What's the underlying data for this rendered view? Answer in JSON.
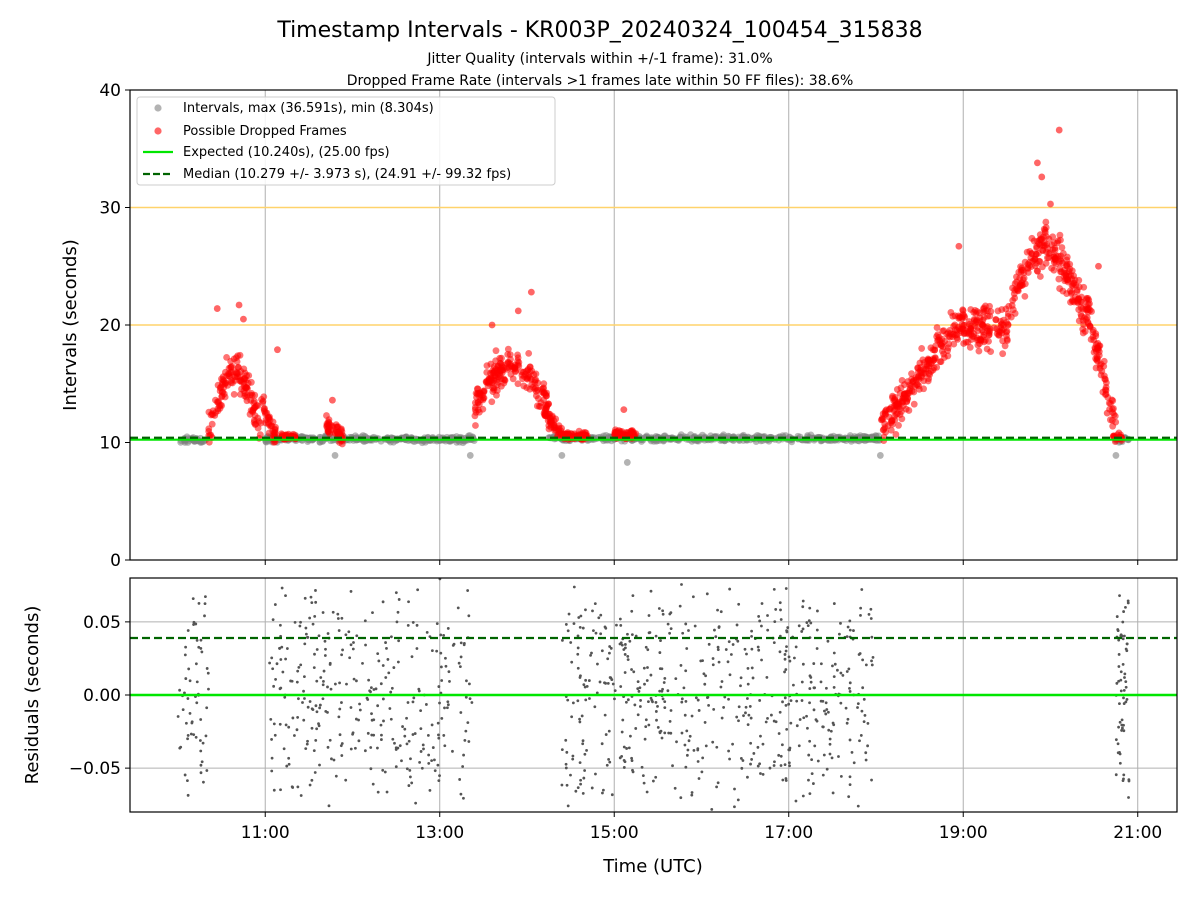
{
  "title": "Timestamp Intervals - KR003P_20240324_100454_315838",
  "subtitle_1": "Jitter Quality (intervals within +/-1 frame): 31.0%",
  "subtitle_2": "Dropped Frame Rate (intervals >1 frames late within 50 FF files): 38.6%",
  "colors": {
    "intervals": "#808080",
    "dropped": "#ff0000",
    "expected": "#00e600",
    "median": "#006400",
    "threshold": "#ffd36b",
    "grid": "#b0b0b0"
  },
  "chart_data": [
    {
      "type": "scatter",
      "ylabel": "Intervals (seconds)",
      "ylim": [
        0,
        40
      ],
      "yticks": [
        "0",
        "10",
        "20",
        "30",
        "40"
      ],
      "xlim_hours": [
        9.45,
        21.45
      ],
      "grid": "vertical",
      "legend_position": "top-left",
      "legend": [
        "Intervals, max (36.591s), min (8.304s)",
        "Possible Dropped Frames",
        "Expected (10.240s), (25.00 fps)",
        "Median (10.279 +/- 3.973 s), (24.91 +/- 99.32 fps)"
      ],
      "expected_line": 10.24,
      "median_line": 10.279,
      "threshold_lines": [
        20,
        30
      ],
      "series": [
        {
          "name": "Intervals, max (36.591s), min (8.304s)",
          "segments": [
            {
              "x_start": 10.0,
              "x_end": 10.32,
              "y_center": 10.2,
              "spread": 0.5
            },
            {
              "x_start": 11.0,
              "x_end": 13.4,
              "y_center": 10.3,
              "spread": 0.5
            },
            {
              "x_start": 14.25,
              "x_end": 18.05,
              "y_center": 10.35,
              "spread": 0.5
            },
            {
              "x_start": 20.75,
              "x_end": 20.9,
              "y_center": 10.25,
              "spread": 0.5
            }
          ],
          "markers": [
            {
              "x": 11.8,
              "y": 8.9
            },
            {
              "x": 13.35,
              "y": 8.9
            },
            {
              "x": 14.4,
              "y": 8.9
            },
            {
              "x": 15.15,
              "y": 8.304
            },
            {
              "x": 18.05,
              "y": 8.9
            },
            {
              "x": 20.75,
              "y": 8.9
            }
          ]
        },
        {
          "name": "Possible Dropped Frames",
          "segments": [
            {
              "x_start": 10.35,
              "x_end": 10.95,
              "profile": "hump",
              "base": 11.0,
              "peak": 16.0,
              "spread": 1.6
            },
            {
              "x_start": 10.95,
              "x_end": 11.12,
              "profile": "ramp",
              "from": 13.5,
              "to": 10.5,
              "spread": 1.0
            },
            {
              "x_start": 11.18,
              "x_end": 11.35,
              "profile": "flat",
              "base": 10.5,
              "spread": 0.3
            },
            {
              "x_start": 11.7,
              "x_end": 11.9,
              "profile": "ramp",
              "from": 11.5,
              "to": 10.5,
              "spread": 0.7
            },
            {
              "x_start": 13.4,
              "x_end": 14.25,
              "profile": "hump",
              "base": 13.0,
              "peak": 16.5,
              "spread": 1.4
            },
            {
              "x_start": 14.2,
              "x_end": 14.4,
              "profile": "ramp",
              "from": 12.5,
              "to": 10.6,
              "spread": 0.7
            },
            {
              "x_start": 14.4,
              "x_end": 14.7,
              "profile": "flat",
              "base": 10.6,
              "spread": 0.3
            },
            {
              "x_start": 15.0,
              "x_end": 15.25,
              "profile": "flat",
              "base": 10.7,
              "spread": 0.4
            },
            {
              "x_start": 18.05,
              "x_end": 19.0,
              "profile": "ramp",
              "from": 11.0,
              "to": 20.5,
              "spread": 1.6
            },
            {
              "x_start": 19.0,
              "x_end": 19.5,
              "profile": "flat",
              "base": 19.8,
              "spread": 1.8
            },
            {
              "x_start": 19.5,
              "x_end": 20.4,
              "profile": "hump",
              "base": 20.5,
              "peak": 26.5,
              "spread": 2.0
            },
            {
              "x_start": 20.4,
              "x_end": 20.75,
              "profile": "ramp",
              "from": 22.0,
              "to": 11.5,
              "spread": 1.5
            },
            {
              "x_start": 20.72,
              "x_end": 20.82,
              "profile": "flat",
              "base": 10.4,
              "spread": 0.3
            }
          ],
          "markers": [
            {
              "x": 10.45,
              "y": 21.4
            },
            {
              "x": 10.7,
              "y": 21.7
            },
            {
              "x": 10.75,
              "y": 20.5
            },
            {
              "x": 11.14,
              "y": 17.9
            },
            {
              "x": 11.77,
              "y": 13.6
            },
            {
              "x": 14.05,
              "y": 22.8
            },
            {
              "x": 13.9,
              "y": 21.2
            },
            {
              "x": 13.6,
              "y": 20.0
            },
            {
              "x": 15.11,
              "y": 12.8
            },
            {
              "x": 18.95,
              "y": 26.7
            },
            {
              "x": 19.85,
              "y": 33.8
            },
            {
              "x": 19.9,
              "y": 32.6
            },
            {
              "x": 20.1,
              "y": 36.591
            },
            {
              "x": 20.0,
              "y": 30.3
            },
            {
              "x": 20.55,
              "y": 25.0
            },
            {
              "x": 20.65,
              "y": 12.5
            }
          ]
        }
      ]
    },
    {
      "type": "scatter",
      "ylabel": "Residuals (seconds)",
      "xlabel": "Time (UTC)",
      "ylim": [
        -0.08,
        0.08
      ],
      "yticks": [
        "−0.05",
        "0.00",
        "0.05"
      ],
      "xlim_hours": [
        9.45,
        21.45
      ],
      "xticks": [
        "11:00",
        "13:00",
        "15:00",
        "17:00",
        "19:00",
        "21:00"
      ],
      "grid": "both",
      "expected_line": 0.0,
      "median_line": 0.039,
      "series": [
        {
          "name": "",
          "segments": [
            {
              "x_start": 10.0,
              "x_end": 10.35,
              "count": 60
            },
            {
              "x_start": 11.05,
              "x_end": 13.4,
              "count": 330
            },
            {
              "x_start": 14.4,
              "x_end": 17.98,
              "count": 560
            },
            {
              "x_start": 20.75,
              "x_end": 20.9,
              "count": 60
            }
          ]
        }
      ]
    }
  ]
}
